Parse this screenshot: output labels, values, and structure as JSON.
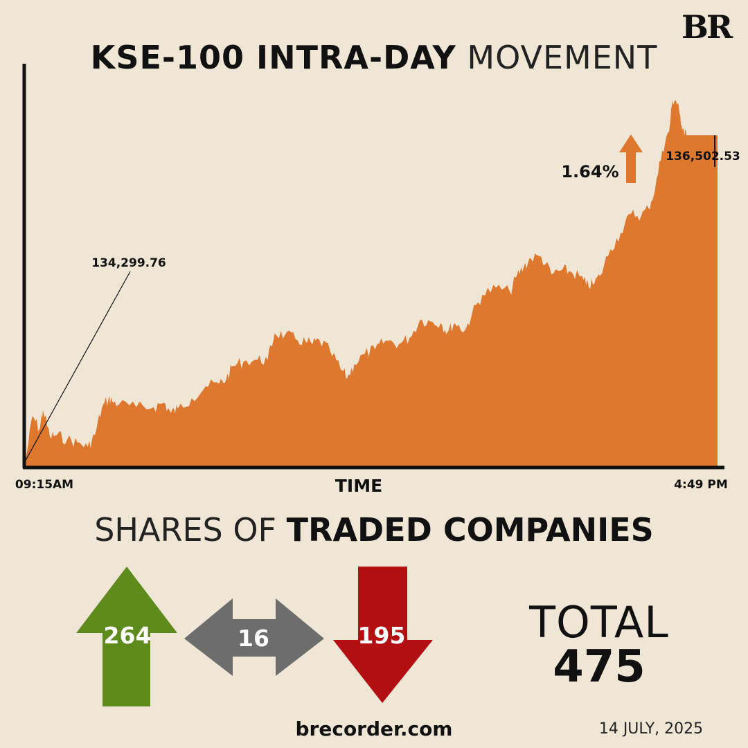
{
  "brand": {
    "logo_text": "BR"
  },
  "title": {
    "bold": "KSE-100 INTRA-DAY",
    "light": "MOVEMENT"
  },
  "chart_data": {
    "type": "area",
    "title": "KSE-100 INTRA-DAY MOVEMENT",
    "xlabel": "TIME",
    "x_start_label": "09:15AM",
    "x_end_label": "4:49 PM",
    "open_value": 134299.76,
    "open_label": "134,299.76",
    "close_value": 136502.53,
    "close_label": "136,502.53",
    "change_label": "1.64%",
    "change_direction": "up",
    "ylim": [
      134260,
      136950
    ],
    "x": [
      0,
      0.01,
      0.02,
      0.025,
      0.035,
      0.045,
      0.06,
      0.075,
      0.09,
      0.1,
      0.11,
      0.12,
      0.125,
      0.135,
      0.16,
      0.185,
      0.2,
      0.21,
      0.22,
      0.24,
      0.26,
      0.28,
      0.29,
      0.3,
      0.315,
      0.335,
      0.35,
      0.36,
      0.375,
      0.39,
      0.405,
      0.415,
      0.425,
      0.44,
      0.455,
      0.465,
      0.475,
      0.49,
      0.505,
      0.52,
      0.54,
      0.555,
      0.57,
      0.585,
      0.6,
      0.61,
      0.62,
      0.635,
      0.645,
      0.66,
      0.68,
      0.7,
      0.71,
      0.72,
      0.73,
      0.745,
      0.76,
      0.775,
      0.785,
      0.8,
      0.81,
      0.82,
      0.83,
      0.845,
      0.86,
      0.875,
      0.89,
      0.9,
      0.91,
      0.92,
      0.93,
      0.935,
      0.94,
      0.945,
      0.95,
      0.955,
      0.96,
      1.0
    ],
    "y": [
      134299.76,
      134600,
      134510,
      134640,
      134460,
      134470,
      134440,
      134420,
      134390,
      134470,
      134650,
      134720,
      134700,
      134680,
      134660,
      134660,
      134690,
      134620,
      134650,
      134720,
      134800,
      134820,
      134850,
      134940,
      134970,
      134980,
      134980,
      135160,
      135150,
      135120,
      135100,
      135090,
      135110,
      135040,
      134920,
      134860,
      134950,
      135020,
      135050,
      135110,
      135090,
      135130,
      135250,
      135240,
      135230,
      135170,
      135230,
      135180,
      135290,
      135420,
      135470,
      135440,
      135550,
      135610,
      135670,
      135680,
      135560,
      135590,
      135580,
      135550,
      135490,
      135490,
      135550,
      135730,
      135840,
      135970,
      135960,
      136010,
      136140,
      136400,
      136530,
      136740,
      136740,
      136650,
      136550,
      136502.53,
      136502.53,
      136502.53
    ]
  },
  "companies": {
    "title_light": "SHARES OF",
    "title_bold": "TRADED COMPANIES",
    "up_count": "264",
    "unchanged_count": "16",
    "down_count": "195",
    "total_label": "TOTAL",
    "total_value": "475",
    "colors": {
      "up": "#5f8a1c",
      "unchanged": "#6d6d6d",
      "down": "#b30f12",
      "area": "#df782f"
    }
  },
  "footer": {
    "site": "brecorder.com",
    "date": "14 JULY, 2025"
  }
}
